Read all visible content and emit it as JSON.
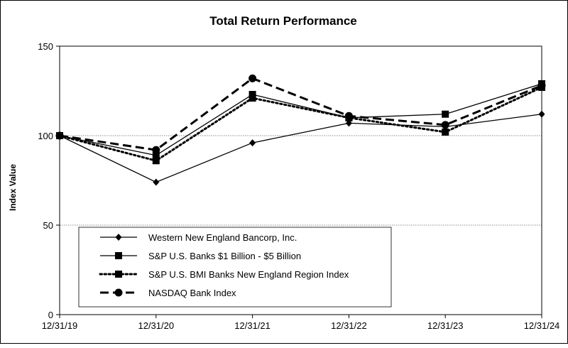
{
  "chart_data": {
    "type": "line",
    "title": "Total Return Performance",
    "xlabel": "",
    "ylabel": "Index Value",
    "categories": [
      "12/31/19",
      "12/31/20",
      "12/31/21",
      "12/31/22",
      "12/31/23",
      "12/31/24"
    ],
    "ylim": [
      0,
      150
    ],
    "yticks": [
      0,
      50,
      100,
      150
    ],
    "grid": "horizontal",
    "legend_position": "lower-left inside plot",
    "series": [
      {
        "name": "Western New England Bancorp, Inc.",
        "marker": "diamond",
        "line": "solid",
        "values": [
          100,
          74,
          96,
          107,
          105,
          112
        ]
      },
      {
        "name": "S&P U.S. Banks $1 Billion - $5 Billion",
        "marker": "square",
        "line": "solid",
        "values": [
          100,
          89,
          123,
          110,
          112,
          129
        ]
      },
      {
        "name": "S&P U.S. BMI Banks New England Region Index",
        "marker": "square",
        "line": "dotted",
        "values": [
          100,
          86,
          121,
          110,
          102,
          127
        ]
      },
      {
        "name": "NASDAQ Bank Index",
        "marker": "circle",
        "line": "dashed",
        "values": [
          100,
          92,
          132,
          111,
          106,
          128
        ]
      }
    ]
  }
}
